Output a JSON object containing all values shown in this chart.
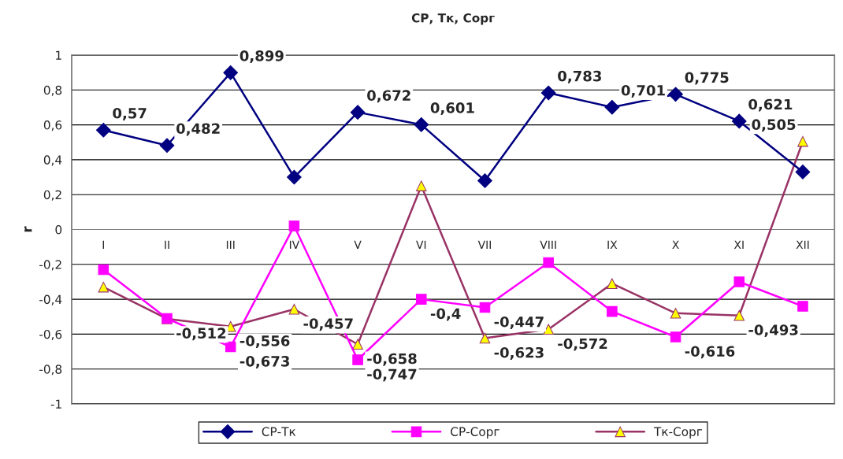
{
  "chart_data": {
    "type": "line",
    "title": "СР, Тк, Сорг",
    "ylabel": "r",
    "categories": [
      "I",
      "II",
      "III",
      "IV",
      "V",
      "VI",
      "VII",
      "VIII",
      "IX",
      "X",
      "XI",
      "XII"
    ],
    "series": [
      {
        "name": "СР-Тк",
        "color": "#000080",
        "marker": "diamond",
        "values": [
          0.57,
          0.482,
          0.899,
          0.3,
          0.672,
          0.601,
          0.28,
          0.783,
          0.701,
          0.775,
          0.621,
          0.33
        ],
        "value_labels": [
          "0,57",
          "0,482",
          "0,899",
          null,
          "0,672",
          "0,601",
          null,
          "0,783",
          "0,701",
          "0,775",
          "0,621",
          null
        ]
      },
      {
        "name": "СР-Сорг",
        "color": "#ff00ff",
        "marker": "square",
        "values": [
          -0.23,
          -0.51,
          -0.673,
          0.02,
          -0.747,
          -0.4,
          -0.447,
          -0.19,
          -0.47,
          -0.616,
          -0.3,
          -0.44
        ],
        "value_labels": [
          null,
          null,
          "-0,673",
          null,
          "-0,747",
          "-0,4",
          "-0,447",
          null,
          null,
          "-0,616",
          null,
          null
        ]
      },
      {
        "name": "Тк-Сорг",
        "color": "#993366",
        "marker": "triangle",
        "values": [
          -0.33,
          -0.512,
          -0.556,
          -0.457,
          -0.658,
          0.25,
          -0.623,
          -0.572,
          -0.31,
          -0.48,
          -0.493,
          0.505
        ],
        "value_labels": [
          null,
          "-0,512",
          "-0,556",
          "-0,457",
          "-0,658",
          null,
          "-0,623",
          "-0,572",
          null,
          null,
          "-0,493",
          "0,505"
        ]
      }
    ],
    "ylim": [
      -1,
      1
    ],
    "yticks": [
      {
        "value": -1,
        "label": "-1"
      },
      {
        "value": -0.8,
        "label": "-0,8"
      },
      {
        "value": -0.6,
        "label": "-0,6"
      },
      {
        "value": -0.4,
        "label": "-0,4"
      },
      {
        "value": -0.2,
        "label": "-0,2"
      },
      {
        "value": 0,
        "label": "0"
      },
      {
        "value": 0.2,
        "label": "0,2"
      },
      {
        "value": 0.4,
        "label": "0,4"
      },
      {
        "value": 0.6,
        "label": "0,6"
      },
      {
        "value": 0.8,
        "label": "0,8"
      },
      {
        "value": 1,
        "label": "1"
      }
    ],
    "grid": "y",
    "legend": "bottom"
  }
}
